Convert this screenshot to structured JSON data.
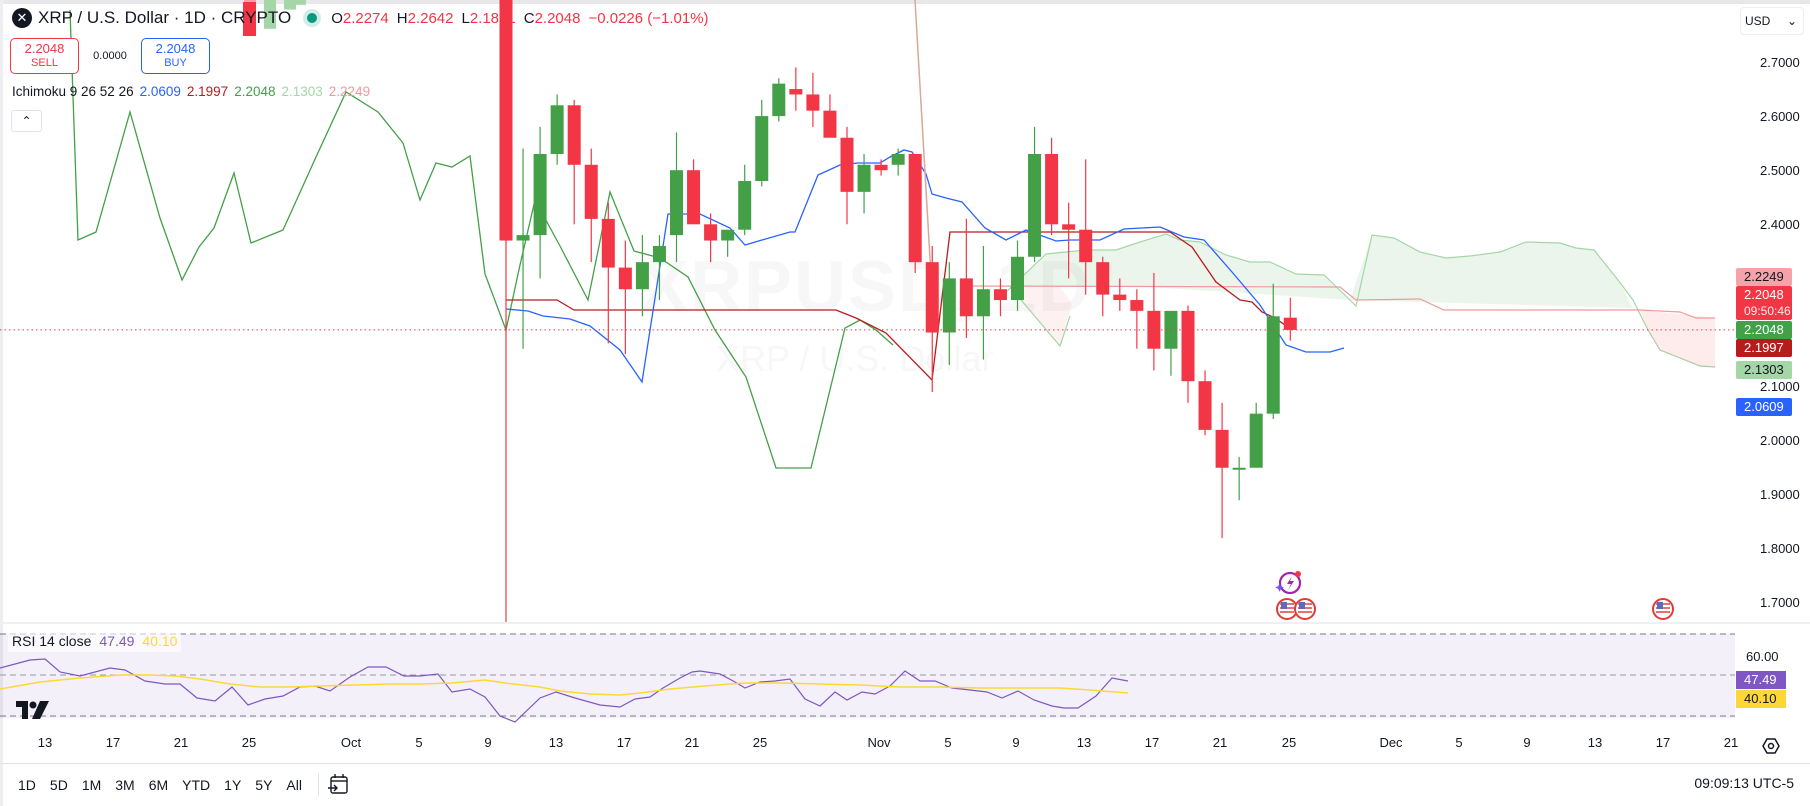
{
  "header": {
    "symbol_logo": "✕",
    "title": "XRP / U.S. Dollar · 1D · CRYPTO",
    "market_status": "open",
    "ohlc": {
      "open_label": "O",
      "open": "2.2274",
      "high_label": "H",
      "high": "2.2642",
      "low_label": "L",
      "low": "2.1851",
      "close_label": "C",
      "close": "2.2048",
      "change": "−0.0226 (−1.01%)"
    }
  },
  "trade": {
    "sell_price": "2.2048",
    "sell_label": "SELL",
    "spread": "0.0000",
    "buy_price": "2.2048",
    "buy_label": "BUY"
  },
  "ichimoku": {
    "label": "Ichimoku 9 26 52 26",
    "conversion": "2.0609",
    "base": "2.1997",
    "lagging": "2.2048",
    "lead_a": "2.1303",
    "lead_b": "2.2249",
    "colors": {
      "conversion": "#2962ff",
      "base": "#b71c1c",
      "lagging": "#43a047",
      "lead_a": "#a5d6a7",
      "lead_b": "#ef9a9a"
    }
  },
  "collapse_icon": "⌃",
  "currency_select": {
    "value": "USD",
    "icon": "⌄"
  },
  "price_axis": {
    "ticks": [
      "2.7000",
      "2.6000",
      "2.5000",
      "2.4000",
      "2.1000",
      "2.0000",
      "1.9000",
      "1.8000",
      "1.7000"
    ],
    "tags": [
      {
        "value": "2.2249",
        "bg": "#f5a3a9",
        "color": "#131722"
      },
      {
        "value": "2.2048",
        "sub": "09:50:46",
        "bg": "#f23645",
        "color": "#ffffff"
      },
      {
        "value": "2.2048",
        "bg": "#43a047",
        "color": "#ffffff"
      },
      {
        "value": "2.1997",
        "bg": "#b71c1c",
        "color": "#ffffff"
      },
      {
        "value": "2.1303",
        "bg": "#a5d6a7",
        "color": "#131722"
      },
      {
        "value": "2.0609",
        "bg": "#2962ff",
        "color": "#ffffff"
      }
    ]
  },
  "watermark": {
    "symbol": "XRPUSD, 1D",
    "name": "XRP / U.S. Dollar"
  },
  "rsi": {
    "label": "RSI 14 close",
    "value": "47.49",
    "ma_value": "40.10",
    "level_label": "60.00",
    "colors": {
      "rsi": "#7e57c2",
      "ma": "#fdd835"
    }
  },
  "time_axis": {
    "labels": [
      "13",
      "17",
      "21",
      "25",
      "Oct",
      "5",
      "9",
      "13",
      "17",
      "21",
      "25",
      "Nov",
      "5",
      "9",
      "13",
      "17",
      "21",
      "25",
      "Dec",
      "5",
      "9",
      "13",
      "17",
      "21"
    ]
  },
  "bottom_bar": {
    "ranges": [
      "1D",
      "5D",
      "1M",
      "3M",
      "6M",
      "YTD",
      "1Y",
      "5Y",
      "All"
    ],
    "goto_date_icon": "calendar-goto",
    "clock": "09:09:13 UTC-5"
  },
  "chart_data": {
    "type": "candlestick",
    "title": "XRP / U.S. Dollar · 1D · CRYPTO",
    "ylabel": "USD",
    "ylim": [
      1.65,
      2.8
    ],
    "y_ticks": [
      1.7,
      1.8,
      1.9,
      2.0,
      2.1,
      2.4,
      2.5,
      2.6,
      2.7
    ],
    "x_ticks": [
      "13",
      "17",
      "21",
      "25",
      "Oct",
      "5",
      "9",
      "13",
      "17",
      "21",
      "25",
      "Nov",
      "5",
      "9",
      "13",
      "17",
      "21",
      "25",
      "Dec",
      "5",
      "9",
      "13",
      "17",
      "21"
    ],
    "last_close": 2.2048,
    "candles_visible_from": "Oct 9",
    "candles": [
      {
        "d": "Oct 10",
        "o": 2.82,
        "h": 2.84,
        "l": 1.68,
        "c": 2.37
      },
      {
        "d": "Oct 11",
        "o": 2.37,
        "h": 2.54,
        "l": 2.17,
        "c": 2.38
      },
      {
        "d": "Oct 12",
        "o": 2.38,
        "h": 2.58,
        "l": 2.3,
        "c": 2.53
      },
      {
        "d": "Oct 13",
        "o": 2.53,
        "h": 2.64,
        "l": 2.51,
        "c": 2.62
      },
      {
        "d": "Oct 14",
        "o": 2.62,
        "h": 2.63,
        "l": 2.4,
        "c": 2.51
      },
      {
        "d": "Oct 15",
        "o": 2.51,
        "h": 2.54,
        "l": 2.33,
        "c": 2.41
      },
      {
        "d": "Oct 16",
        "o": 2.41,
        "h": 2.44,
        "l": 2.18,
        "c": 2.32
      },
      {
        "d": "Oct 17",
        "o": 2.32,
        "h": 2.37,
        "l": 2.16,
        "c": 2.28
      },
      {
        "d": "Oct 18",
        "o": 2.28,
        "h": 2.38,
        "l": 2.23,
        "c": 2.33
      },
      {
        "d": "Oct 19",
        "o": 2.33,
        "h": 2.38,
        "l": 2.26,
        "c": 2.36
      },
      {
        "d": "Oct 20",
        "o": 2.38,
        "h": 2.57,
        "l": 2.33,
        "c": 2.5
      },
      {
        "d": "Oct 21",
        "o": 2.5,
        "h": 2.52,
        "l": 2.41,
        "c": 2.4
      },
      {
        "d": "Oct 22",
        "o": 2.4,
        "h": 2.42,
        "l": 2.33,
        "c": 2.37
      },
      {
        "d": "Oct 23",
        "o": 2.37,
        "h": 2.38,
        "l": 2.34,
        "c": 2.39
      },
      {
        "d": "Oct 24",
        "o": 2.39,
        "h": 2.51,
        "l": 2.38,
        "c": 2.48
      },
      {
        "d": "Oct 25",
        "o": 2.48,
        "h": 2.63,
        "l": 2.47,
        "c": 2.6
      },
      {
        "d": "Oct 26",
        "o": 2.6,
        "h": 2.67,
        "l": 2.59,
        "c": 2.66
      },
      {
        "d": "Oct 27",
        "o": 2.65,
        "h": 2.69,
        "l": 2.61,
        "c": 2.64
      },
      {
        "d": "Oct 28",
        "o": 2.64,
        "h": 2.68,
        "l": 2.58,
        "c": 2.61
      },
      {
        "d": "Oct 29",
        "o": 2.61,
        "h": 2.64,
        "l": 2.57,
        "c": 2.56
      },
      {
        "d": "Oct 30",
        "o": 2.56,
        "h": 2.58,
        "l": 2.4,
        "c": 2.46
      },
      {
        "d": "Oct 31",
        "o": 2.46,
        "h": 2.53,
        "l": 2.42,
        "c": 2.51
      },
      {
        "d": "Nov 1",
        "o": 2.51,
        "h": 2.52,
        "l": 2.49,
        "c": 2.5
      },
      {
        "d": "Nov 2",
        "o": 2.51,
        "h": 2.54,
        "l": 2.49,
        "c": 2.53
      },
      {
        "d": "Nov 3",
        "o": 2.53,
        "h": 2.53,
        "l": 2.31,
        "c": 2.33
      },
      {
        "d": "Nov 4",
        "o": 2.33,
        "h": 2.36,
        "l": 2.09,
        "c": 2.2
      },
      {
        "d": "Nov 5",
        "o": 2.2,
        "h": 2.33,
        "l": 2.14,
        "c": 2.3
      },
      {
        "d": "Nov 6",
        "o": 2.3,
        "h": 2.41,
        "l": 2.19,
        "c": 2.23
      },
      {
        "d": "Nov 7",
        "o": 2.23,
        "h": 2.36,
        "l": 2.15,
        "c": 2.28
      },
      {
        "d": "Nov 8",
        "o": 2.28,
        "h": 2.3,
        "l": 2.23,
        "c": 2.26
      },
      {
        "d": "Nov 9",
        "o": 2.26,
        "h": 2.37,
        "l": 2.24,
        "c": 2.34
      },
      {
        "d": "Nov 10",
        "o": 2.34,
        "h": 2.58,
        "l": 2.33,
        "c": 2.53
      },
      {
        "d": "Nov 11",
        "o": 2.53,
        "h": 2.56,
        "l": 2.38,
        "c": 2.4
      },
      {
        "d": "Nov 12",
        "o": 2.4,
        "h": 2.44,
        "l": 2.3,
        "c": 2.39
      },
      {
        "d": "Nov 13",
        "o": 2.39,
        "h": 2.52,
        "l": 2.27,
        "c": 2.33
      },
      {
        "d": "Nov 14",
        "o": 2.33,
        "h": 2.34,
        "l": 2.23,
        "c": 2.27
      },
      {
        "d": "Nov 15",
        "o": 2.27,
        "h": 2.3,
        "l": 2.24,
        "c": 2.26
      },
      {
        "d": "Nov 16",
        "o": 2.26,
        "h": 2.28,
        "l": 2.17,
        "c": 2.24
      },
      {
        "d": "Nov 17",
        "o": 2.24,
        "h": 2.31,
        "l": 2.13,
        "c": 2.17
      },
      {
        "d": "Nov 18",
        "o": 2.17,
        "h": 2.22,
        "l": 2.12,
        "c": 2.24
      },
      {
        "d": "Nov 19",
        "o": 2.24,
        "h": 2.25,
        "l": 2.07,
        "c": 2.11
      },
      {
        "d": "Nov 20",
        "o": 2.11,
        "h": 2.13,
        "l": 2.01,
        "c": 2.02
      },
      {
        "d": "Nov 21",
        "o": 2.02,
        "h": 2.07,
        "l": 1.82,
        "c": 1.95
      },
      {
        "d": "Nov 22",
        "o": 1.95,
        "h": 1.97,
        "l": 1.89,
        "c": 1.95
      },
      {
        "d": "Nov 23",
        "o": 1.95,
        "h": 2.07,
        "l": 1.95,
        "c": 2.05
      },
      {
        "d": "Nov 24",
        "o": 2.05,
        "h": 2.29,
        "l": 2.04,
        "c": 2.23
      },
      {
        "d": "Nov 25",
        "o": 2.2274,
        "h": 2.2642,
        "l": 2.1851,
        "c": 2.2048
      }
    ],
    "indicators": {
      "ichimoku": {
        "conversion": 2.0609,
        "base": 2.1997,
        "lagging": 2.2048,
        "lead_a": 2.1303,
        "lead_b": 2.2249
      },
      "rsi": {
        "value": 47.49,
        "ma": 40.1,
        "band": [
          40,
          60
        ],
        "visible_level_label": 60.0
      }
    }
  }
}
